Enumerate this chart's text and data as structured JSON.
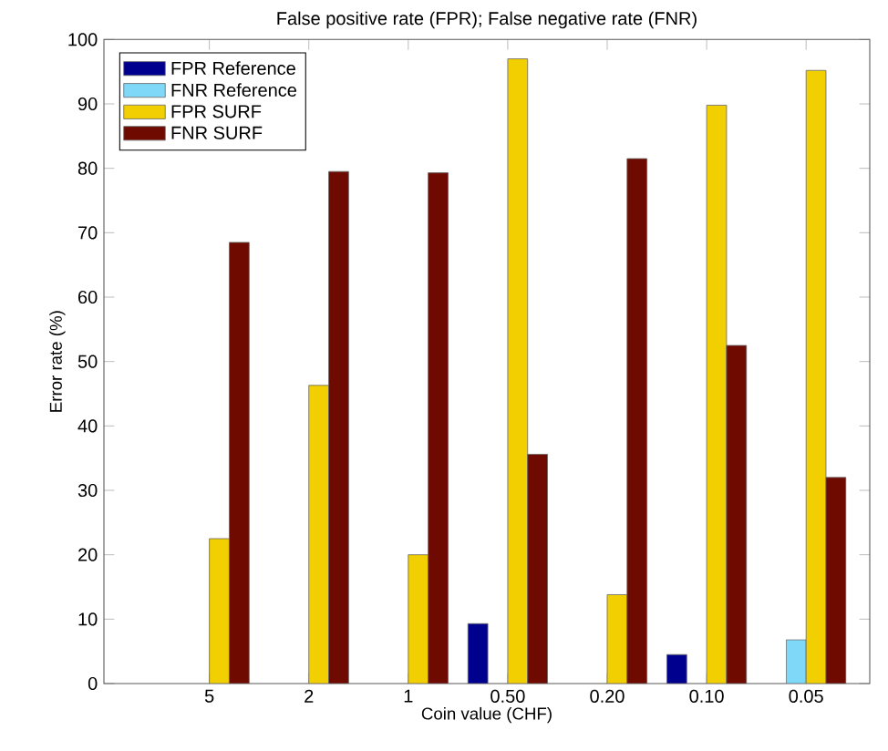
{
  "chart_data": {
    "type": "bar",
    "title": "False positive rate (FPR); False negative rate (FNR)",
    "xlabel": "Coin value (CHF)",
    "ylabel": "Error rate (%)",
    "categories": [
      "5",
      "2",
      "1",
      "0.50",
      "0.20",
      "0.10",
      "0.05"
    ],
    "series": [
      {
        "name": "FPR Reference",
        "color": "#00008f",
        "values": [
          null,
          null,
          null,
          9.3,
          null,
          4.5,
          null
        ]
      },
      {
        "name": "FNR Reference",
        "color": "#80d8f8",
        "values": [
          null,
          null,
          null,
          null,
          null,
          null,
          6.8
        ]
      },
      {
        "name": "FPR SURF",
        "color": "#f2cf00",
        "values": [
          22.5,
          46.3,
          20,
          97,
          13.8,
          89.8,
          95.2
        ]
      },
      {
        "name": "FNR SURF",
        "color": "#6e0a00",
        "values": [
          68.5,
          79.5,
          79.3,
          35.6,
          81.5,
          52.5,
          32
        ]
      }
    ],
    "ylim": [
      0,
      100
    ],
    "yticks": [
      0,
      10,
      20,
      30,
      40,
      50,
      60,
      70,
      80,
      90,
      100
    ],
    "grid": false,
    "legend": "top left"
  }
}
